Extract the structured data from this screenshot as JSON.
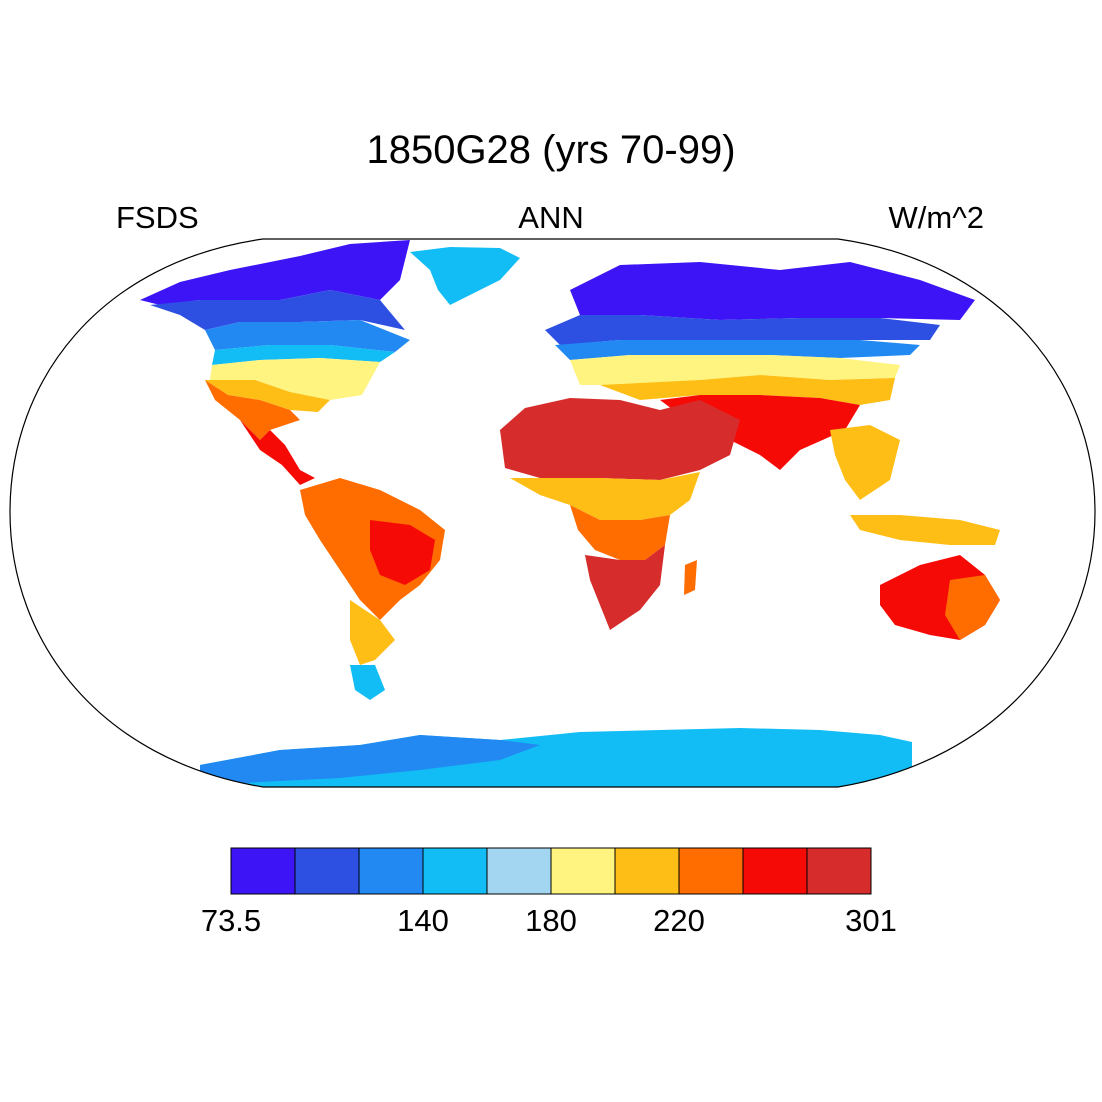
{
  "title": "1850G28 (yrs 70-99)",
  "left_label": "FSDS",
  "center_label": "ANN",
  "right_label": "W/m^2",
  "colorbar": {
    "colors": [
      "#3c14f5",
      "#2d50e3",
      "#2288f2",
      "#12bdf5",
      "#a3d7f1",
      "#fff480",
      "#ffbe15",
      "#ff6d00",
      "#f60a06",
      "#d62c2c"
    ],
    "tick_labels": [
      {
        "text": "73.5",
        "boundary": 0
      },
      {
        "text": "140",
        "boundary": 3
      },
      {
        "text": "180",
        "boundary": 5
      },
      {
        "text": "220",
        "boundary": 7
      },
      {
        "text": "301",
        "boundary": 10
      }
    ]
  },
  "map": {
    "projection": "Robinson",
    "colored_land_regions": [
      {
        "name": "North America",
        "level": 1
      },
      {
        "name": "Greenland",
        "level": 3
      },
      {
        "name": "South America",
        "level": 7
      },
      {
        "name": "Africa",
        "level": 8
      },
      {
        "name": "Eurasia",
        "level": 1
      },
      {
        "name": "Australia",
        "level": 7
      },
      {
        "name": "Antarctica",
        "level": 3
      }
    ]
  }
}
